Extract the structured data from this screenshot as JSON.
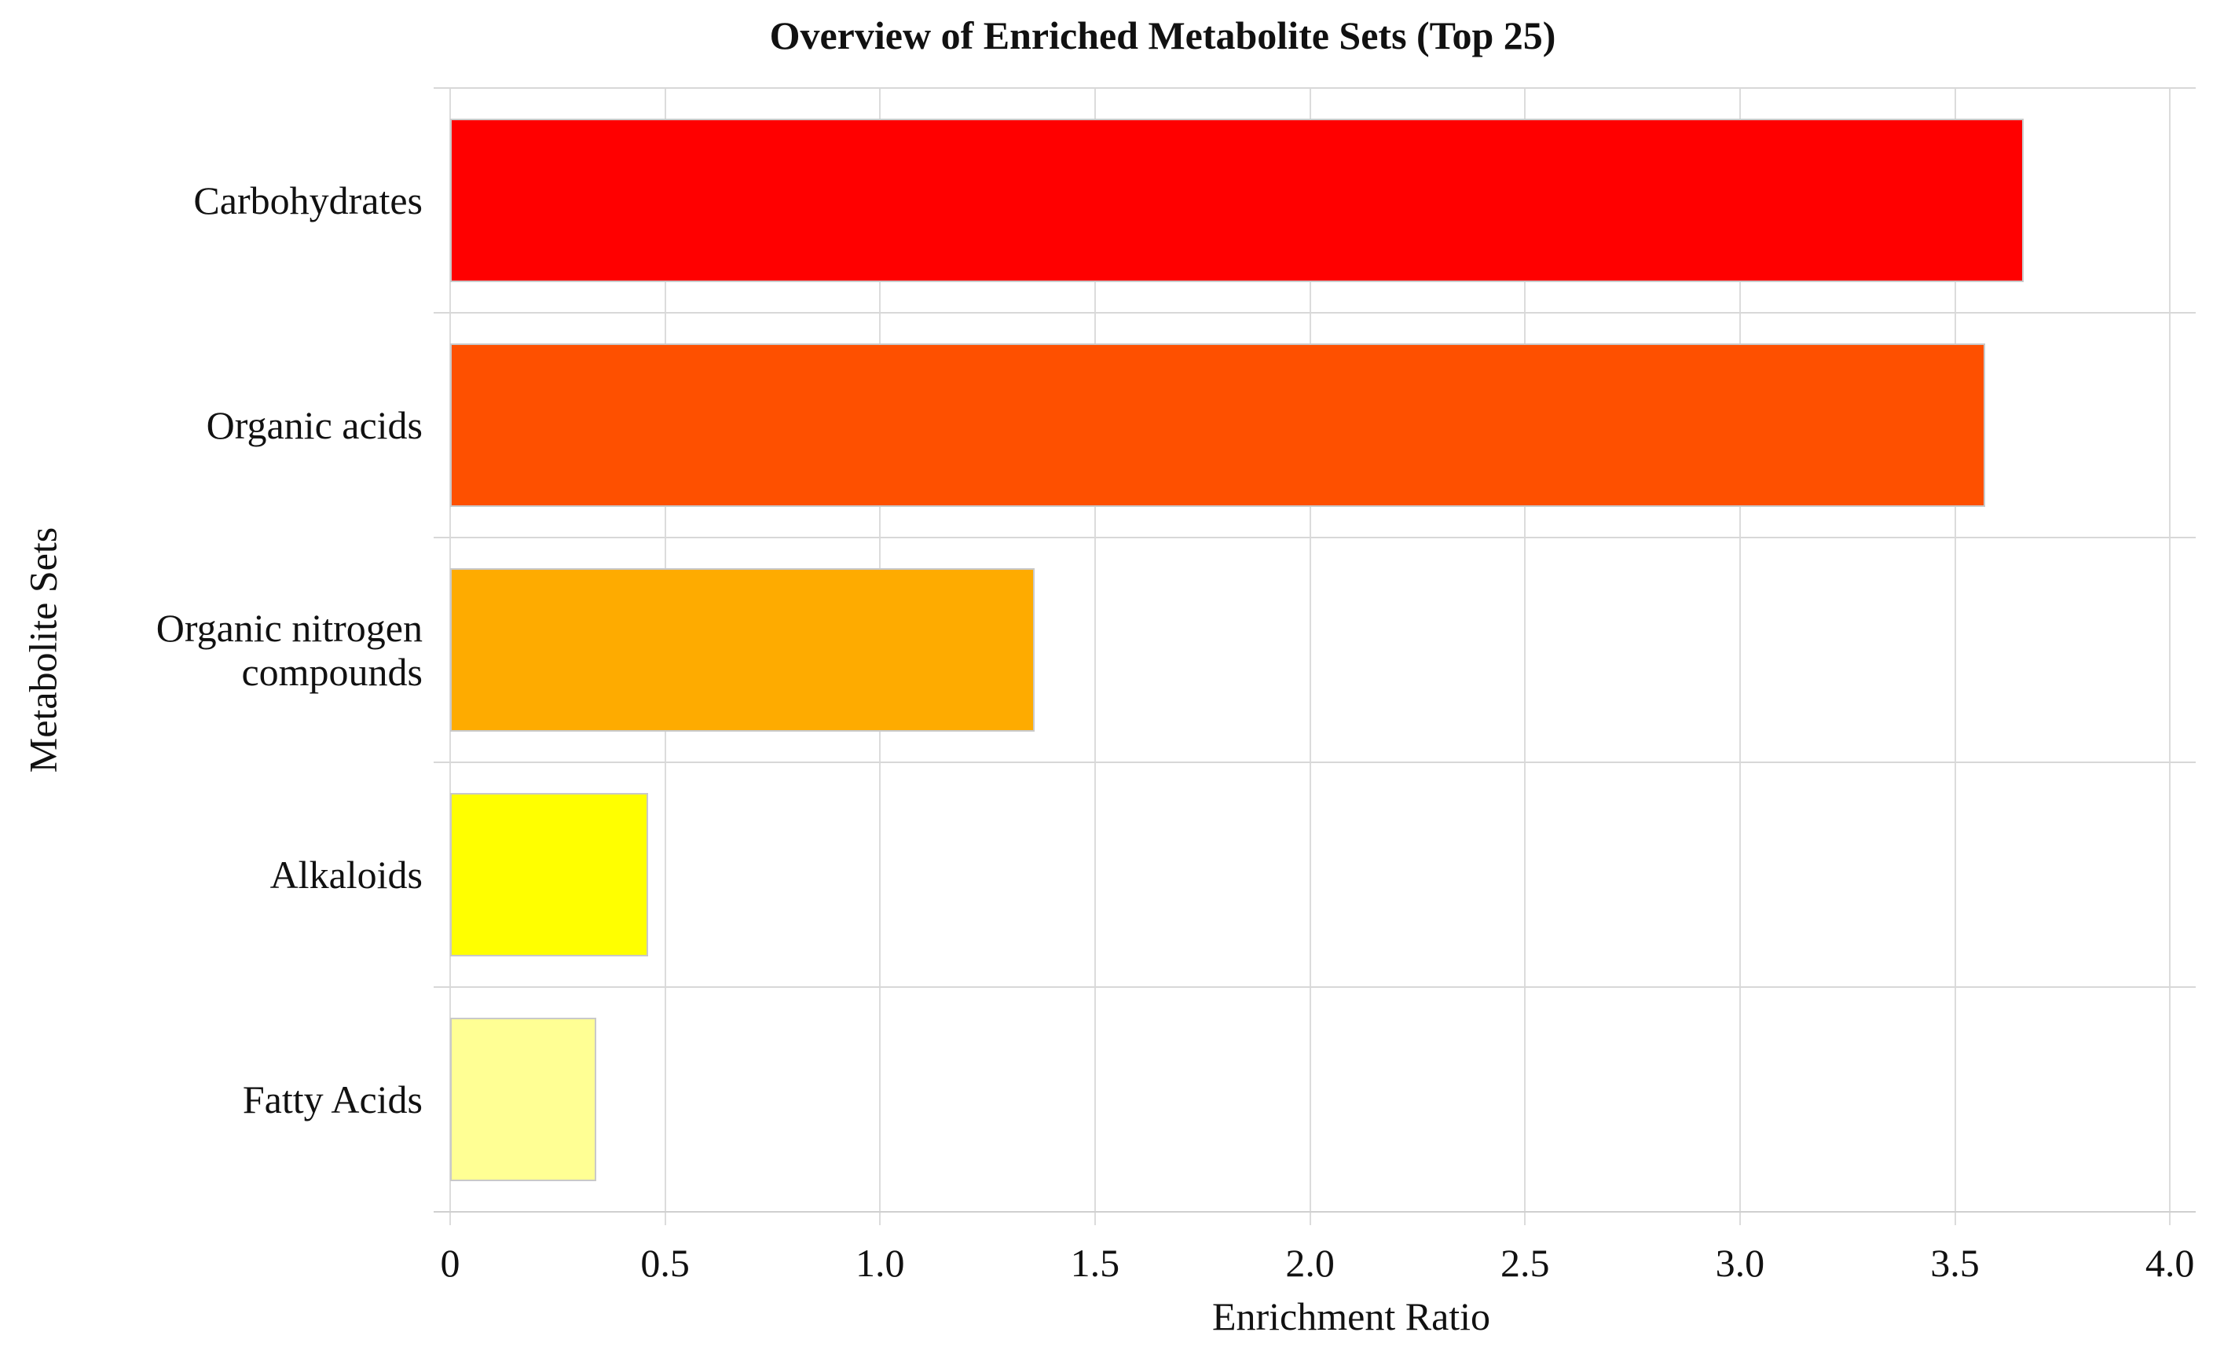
{
  "chart_data": {
    "type": "bar",
    "orientation": "horizontal",
    "title": "Overview of Enriched Metabolite Sets (Top 25)",
    "xlabel": "Enrichment Ratio",
    "ylabel": "Metabolite Sets",
    "categories": [
      "Carbohydrates",
      "Organic acids",
      "Organic nitrogen\ncompounds",
      "Alkaloids",
      "Fatty Acids"
    ],
    "values": [
      3.66,
      3.57,
      1.36,
      0.46,
      0.34
    ],
    "bar_colors": [
      "#ff0000",
      "#fe5000",
      "#feab00",
      "#ffff00",
      "#ffff94"
    ],
    "x_ticks": [
      0,
      0.5,
      1.0,
      1.5,
      2.0,
      2.5,
      3.0,
      3.5,
      4.0
    ],
    "x_tick_labels": [
      "0",
      "0.5",
      "1.0",
      "1.5",
      "2.0",
      "2.5",
      "3.0",
      "3.5",
      "4.0"
    ],
    "xlim": [
      0,
      4.06
    ],
    "grid": true,
    "legend_position": "none",
    "background_color": "#ffffff",
    "gridline_color": "#dcdcdc",
    "bar_border_color": "#c9c9c9",
    "text_color": "#111111"
  }
}
